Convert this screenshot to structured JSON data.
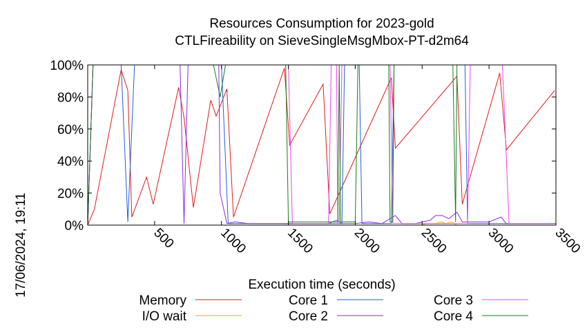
{
  "page": {
    "title_line1": "Resources Consumption for 2023-gold",
    "title_line2": "CTLFireability on SieveSingleMsgMbox-PT-d2m64",
    "side_label": "17/06/2024, 19:11"
  },
  "chart_data": {
    "type": "line",
    "title": "Resources Consumption for 2023-gold CTLFireability on SieveSingleMsgMbox-PT-d2m64",
    "xlabel": "Execution time (seconds)",
    "ylabel": "",
    "xlim": [
      0,
      3500
    ],
    "ylim": [
      0,
      100
    ],
    "x_ticks": [
      500,
      1000,
      1500,
      2000,
      2500,
      3000,
      3500
    ],
    "x_tick_labels": [
      "500",
      "1000",
      "1500",
      "2000",
      "2500",
      "3000",
      "3500"
    ],
    "y_ticks": [
      0,
      20,
      40,
      60,
      80,
      100
    ],
    "y_tick_labels": [
      "0%",
      "20%",
      "40%",
      "60%",
      "80%",
      "100%"
    ],
    "grid": false,
    "legend_placement": "bottom",
    "series": [
      {
        "name": "Memory",
        "color": "#e31a1c",
        "points": [
          [
            0,
            0
          ],
          [
            50,
            10
          ],
          [
            250,
            97
          ],
          [
            300,
            84
          ],
          [
            330,
            5
          ],
          [
            440,
            30
          ],
          [
            490,
            13
          ],
          [
            680,
            86
          ],
          [
            720,
            67
          ],
          [
            790,
            11
          ],
          [
            920,
            78
          ],
          [
            960,
            68
          ],
          [
            1040,
            85
          ],
          [
            1090,
            5
          ],
          [
            1470,
            98
          ],
          [
            1510,
            50
          ],
          [
            1760,
            88
          ],
          [
            1810,
            7
          ],
          [
            2270,
            92
          ],
          [
            2300,
            48
          ],
          [
            2760,
            93
          ],
          [
            2800,
            13
          ],
          [
            3080,
            95
          ],
          [
            3130,
            47
          ],
          [
            3490,
            84
          ]
        ]
      },
      {
        "name": "I/O wait",
        "color": "#ffa500",
        "points": [
          [
            0,
            0
          ],
          [
            2500,
            0
          ],
          [
            2530,
            1
          ],
          [
            2600,
            1
          ],
          [
            2640,
            2
          ],
          [
            2680,
            1
          ],
          [
            2720,
            2
          ],
          [
            2760,
            0
          ],
          [
            3500,
            0
          ]
        ]
      },
      {
        "name": "Core 1",
        "color": "#1f5fd6",
        "points": [
          [
            0,
            0
          ],
          [
            40,
            100
          ],
          [
            250,
            100
          ],
          [
            300,
            2
          ],
          [
            350,
            100
          ],
          [
            1000,
            100
          ],
          [
            1050,
            1
          ],
          [
            1900,
            1
          ],
          [
            1920,
            100
          ],
          [
            2030,
            100
          ],
          [
            2050,
            1
          ],
          [
            2270,
            1
          ],
          [
            2290,
            100
          ],
          [
            2820,
            100
          ],
          [
            2840,
            1
          ],
          [
            3500,
            1
          ]
        ]
      },
      {
        "name": "Core 2",
        "color": "#8a2be2",
        "points": [
          [
            0,
            0
          ],
          [
            40,
            100
          ],
          [
            690,
            100
          ],
          [
            720,
            1
          ],
          [
            750,
            100
          ],
          [
            980,
            100
          ],
          [
            990,
            20
          ],
          [
            1040,
            1
          ],
          [
            1100,
            2
          ],
          [
            1200,
            1
          ],
          [
            1500,
            1
          ],
          [
            1800,
            1
          ],
          [
            1860,
            3
          ],
          [
            1900,
            1
          ],
          [
            2000,
            1
          ],
          [
            2100,
            2
          ],
          [
            2200,
            1
          ],
          [
            2300,
            6
          ],
          [
            2350,
            1
          ],
          [
            2450,
            1
          ],
          [
            2500,
            2
          ],
          [
            2560,
            3
          ],
          [
            2600,
            6
          ],
          [
            2650,
            6
          ],
          [
            2700,
            4
          ],
          [
            2760,
            8
          ],
          [
            2800,
            2
          ],
          [
            2900,
            2
          ],
          [
            3000,
            2
          ],
          [
            3090,
            5
          ],
          [
            3130,
            1
          ],
          [
            3500,
            1
          ]
        ]
      },
      {
        "name": "Core 3",
        "color": "#ee44ee",
        "points": [
          [
            0,
            0
          ],
          [
            40,
            100
          ],
          [
            1500,
            100
          ],
          [
            1530,
            1
          ],
          [
            1800,
            1
          ],
          [
            1820,
            100
          ],
          [
            1860,
            100
          ],
          [
            1870,
            1
          ],
          [
            1880,
            1
          ],
          [
            1900,
            100
          ],
          [
            2260,
            100
          ],
          [
            2280,
            1
          ],
          [
            2840,
            1
          ],
          [
            2860,
            100
          ],
          [
            3060,
            100
          ],
          [
            3100,
            100
          ],
          [
            3150,
            1
          ],
          [
            3500,
            1
          ]
        ]
      },
      {
        "name": "Core 4",
        "color": "#1a7a1a",
        "points": [
          [
            0,
            0
          ],
          [
            40,
            100
          ],
          [
            940,
            100
          ],
          [
            990,
            80
          ],
          [
            1030,
            100
          ],
          [
            1480,
            100
          ],
          [
            1500,
            2
          ],
          [
            1870,
            2
          ],
          [
            1880,
            100
          ],
          [
            1890,
            2
          ],
          [
            2000,
            2
          ],
          [
            2020,
            100
          ],
          [
            2250,
            100
          ],
          [
            2260,
            2
          ],
          [
            2280,
            2
          ],
          [
            2290,
            100
          ],
          [
            2730,
            100
          ],
          [
            2750,
            2
          ],
          [
            2760,
            100
          ],
          [
            3500,
            100
          ]
        ]
      }
    ]
  }
}
